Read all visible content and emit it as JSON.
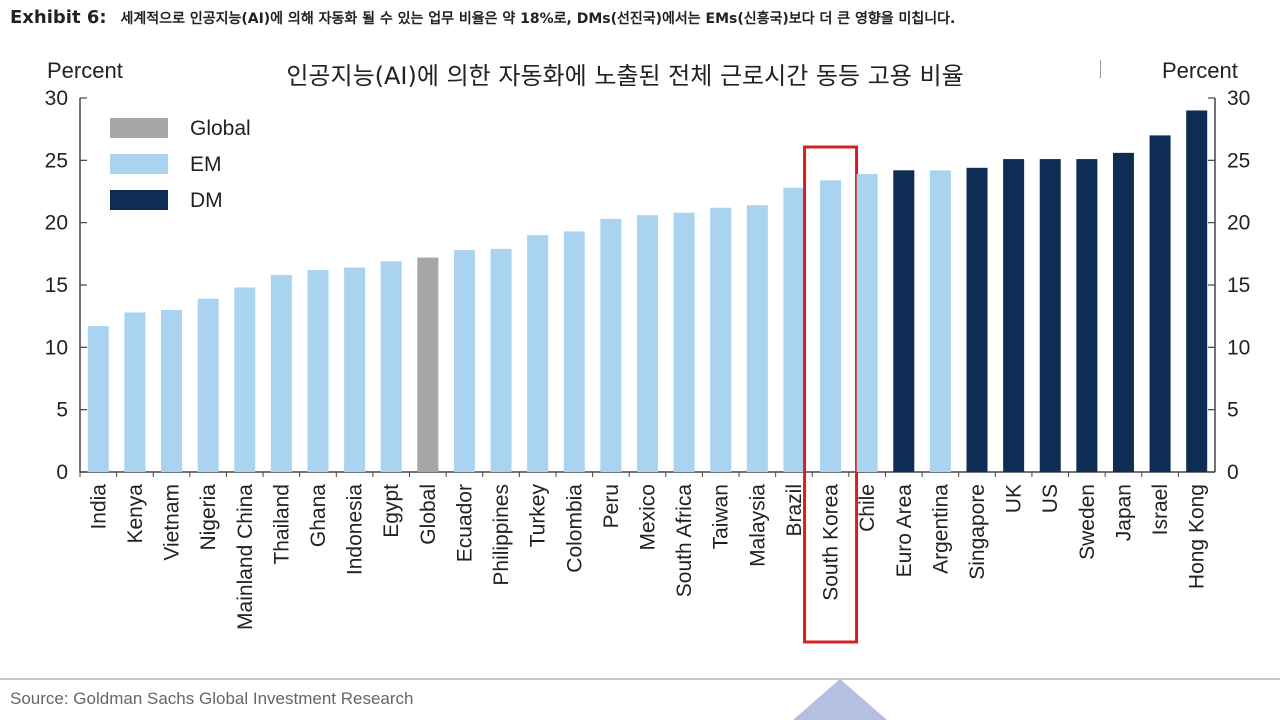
{
  "header": {
    "exhibit_label": "Exhibit 6:",
    "exhibit_text": "세계적으로 인공지능(AI)에 의해 자동화 될 수 있는 업무 비율은 약 18%로, DMs(선진국)에서는 EMs(신흥국)보다 더 큰 영향을 미칩니다."
  },
  "footer": {
    "source": "Source: Goldman Sachs Global Investment Research"
  },
  "chart_data": {
    "type": "bar",
    "title": "인공지능(AI)에 의한 자동화에 노출된 전체 근로시간 동등 고용 비율",
    "ylabel_left": "Percent",
    "ylabel_right": "Percent",
    "ylim": [
      0,
      30
    ],
    "yticks": [
      0,
      5,
      10,
      15,
      20,
      25,
      30
    ],
    "legend": [
      {
        "name": "Global",
        "color": "#a6a6a6"
      },
      {
        "name": "EM",
        "color": "#a9d3f0"
      },
      {
        "name": "DM",
        "color": "#0d2d55"
      }
    ],
    "legend_position": "top-left",
    "highlight": "South Korea",
    "highlight_color": "#d32020",
    "categories": [
      "India",
      "Kenya",
      "Vietnam",
      "Nigeria",
      "Mainland China",
      "Thailand",
      "Ghana",
      "Indonesia",
      "Egypt",
      "Global",
      "Ecuador",
      "Philippines",
      "Turkey",
      "Colombia",
      "Peru",
      "Mexico",
      "South Africa",
      "Taiwan",
      "Malaysia",
      "Brazil",
      "South Korea",
      "Chile",
      "Euro Area",
      "Argentina",
      "Singapore",
      "UK",
      "US",
      "Sweden",
      "Japan",
      "Israel",
      "Hong Kong"
    ],
    "values": [
      11.7,
      12.8,
      13.0,
      13.9,
      14.8,
      15.8,
      16.2,
      16.4,
      16.9,
      17.2,
      17.8,
      17.9,
      19.0,
      19.3,
      20.3,
      20.6,
      20.8,
      21.2,
      21.4,
      22.8,
      23.4,
      23.9,
      24.2,
      24.2,
      24.4,
      25.1,
      25.1,
      25.1,
      25.6,
      27.0,
      29.0
    ],
    "groups": [
      "EM",
      "EM",
      "EM",
      "EM",
      "EM",
      "EM",
      "EM",
      "EM",
      "EM",
      "Global",
      "EM",
      "EM",
      "EM",
      "EM",
      "EM",
      "EM",
      "EM",
      "EM",
      "EM",
      "EM",
      "EM",
      "EM",
      "DM",
      "EM",
      "DM",
      "DM",
      "DM",
      "DM",
      "DM",
      "DM",
      "DM"
    ]
  }
}
